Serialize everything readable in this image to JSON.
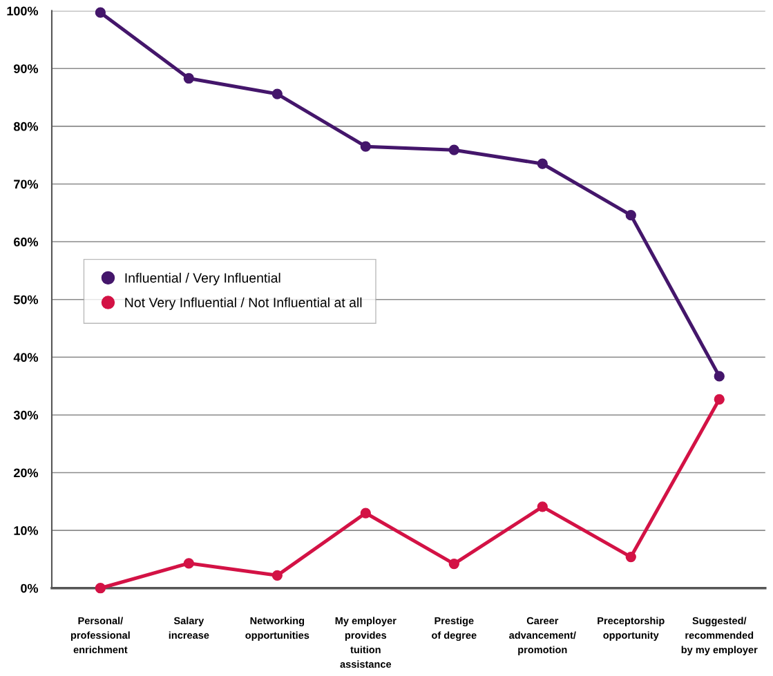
{
  "chart_data": {
    "type": "line",
    "categories": [
      "Personal/\nprofessional\nenrichment",
      "Salary\nincrease",
      "Networking\nopportunities",
      "My employer\nprovides\ntuition\nassistance",
      "Prestige\nof degree",
      "Career\nadvancement/\npromotion",
      "Preceptorship\nopportunity",
      "Suggested/\nrecommended\nby my employer"
    ],
    "series": [
      {
        "name": "Influential / Very Influential",
        "color": "#44166b",
        "values": [
          99.7,
          88.3,
          85.6,
          76.5,
          75.9,
          73.5,
          64.6,
          36.7
        ]
      },
      {
        "name": "Not Very Influential / Not Influential at all",
        "color": "#d31245",
        "values": [
          0,
          4.3,
          2.2,
          13.0,
          4.2,
          14.1,
          5.4,
          32.7
        ]
      }
    ],
    "ylim": [
      0,
      100
    ],
    "yticks": [
      {
        "value": 0,
        "label": "0%"
      },
      {
        "value": 10,
        "label": "10%"
      },
      {
        "value": 20,
        "label": "20%"
      },
      {
        "value": 30,
        "label": "30%"
      },
      {
        "value": 40,
        "label": "40%"
      },
      {
        "value": 50,
        "label": "50%"
      },
      {
        "value": 60,
        "label": "60%"
      },
      {
        "value": 70,
        "label": "70%"
      },
      {
        "value": 80,
        "label": "80%"
      },
      {
        "value": 90,
        "label": "90%"
      },
      {
        "value": 100,
        "label": "100%"
      }
    ],
    "grid": "y",
    "legend": "left",
    "marker": "circle",
    "line_style": "solid"
  }
}
